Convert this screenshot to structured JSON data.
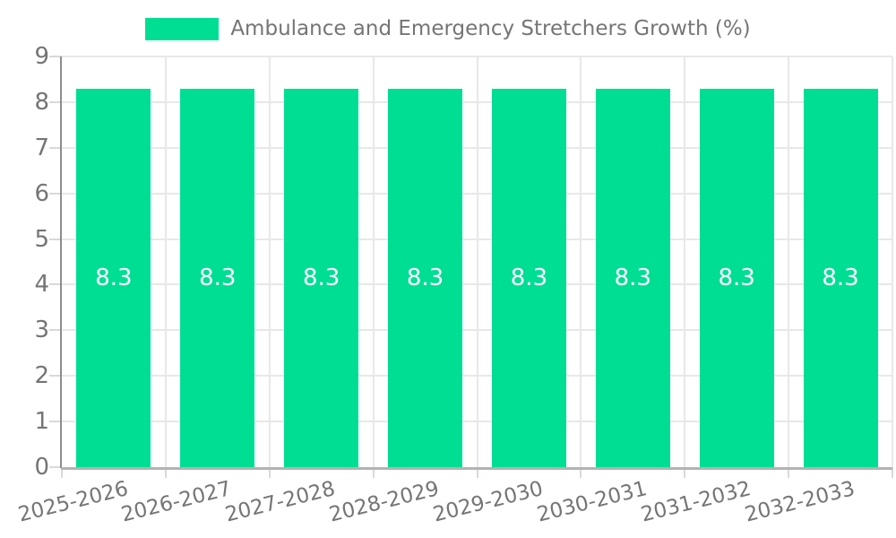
{
  "chart_data": {
    "type": "bar",
    "title": "Ambulance and Emergency Stretchers Growth (%)",
    "legend": {
      "position": "top",
      "label": "Ambulance and Emergency Stretchers Growth (%)"
    },
    "categories": [
      "2025-2026",
      "2026-2027",
      "2027-2028",
      "2028-2029",
      "2029-2030",
      "2030-2031",
      "2031-2032",
      "2032-2033"
    ],
    "values": [
      8.3,
      8.3,
      8.3,
      8.3,
      8.3,
      8.3,
      8.3,
      8.3
    ],
    "value_labels": [
      "8.3",
      "8.3",
      "8.3",
      "8.3",
      "8.3",
      "8.3",
      "8.3",
      "8.3"
    ],
    "ytick_labels": [
      "0",
      "1",
      "2",
      "3",
      "4",
      "5",
      "6",
      "7",
      "8",
      "9"
    ],
    "ylim": [
      0,
      9
    ],
    "xlabel": "",
    "ylabel": "",
    "grid": true,
    "x_label_rotation_deg": -14,
    "colors": {
      "bar": "#00DE94",
      "value_label": "#FFFFFF",
      "axis_text": "#757575",
      "grid_line": "#E8E8E8",
      "tick_line": "#D9D9D9",
      "y_axis_line": "#8C8C8C",
      "x_axis_line": "#B3B3B3",
      "background": "#FFFFFF"
    }
  }
}
